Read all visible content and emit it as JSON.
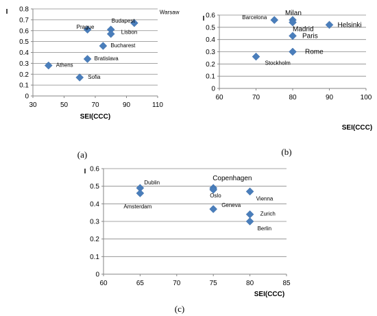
{
  "chart_data": [
    {
      "type": "scatter",
      "caption": "(a)",
      "xlabel": "SEI(CCC)",
      "ylabel": "I",
      "xlim": [
        30,
        110
      ],
      "ylim": [
        0,
        0.8
      ],
      "xticks": [
        "30",
        "50",
        "70",
        "90",
        "110"
      ],
      "yticks": [
        "0",
        "0.1",
        "0.2",
        "0.3",
        "0.4",
        "0.5",
        "0.6",
        "0.7",
        "0.8"
      ],
      "points": [
        {
          "label": "Warsaw",
          "x": 95,
          "y": 0.67
        },
        {
          "label": "Budapest",
          "x": 80,
          "y": 0.61
        },
        {
          "label": "Prague",
          "x": 65,
          "y": 0.61
        },
        {
          "label": "Lisbon",
          "x": 80,
          "y": 0.57
        },
        {
          "label": "Bucharest",
          "x": 75,
          "y": 0.46
        },
        {
          "label": "Bratislava",
          "x": 65,
          "y": 0.34
        },
        {
          "label": "Athens",
          "x": 40,
          "y": 0.28
        },
        {
          "label": "Sofia",
          "x": 60,
          "y": 0.17
        }
      ]
    },
    {
      "type": "scatter",
      "caption": "(b)",
      "xlabel": "SEI(CCC)",
      "ylabel": "I",
      "xlim": [
        60,
        100
      ],
      "ylim": [
        0,
        0.6
      ],
      "xticks": [
        "60",
        "70",
        "80",
        "90",
        "100"
      ],
      "yticks": [
        "0",
        "0.1",
        "0.2",
        "0.3",
        "0.4",
        "0.5",
        "0.6"
      ],
      "points": [
        {
          "label": "Barcelona",
          "x": 75,
          "y": 0.56
        },
        {
          "label": "Milan",
          "x": 80,
          "y": 0.56
        },
        {
          "label": "Madrid",
          "x": 80,
          "y": 0.54
        },
        {
          "label": "Helsinki",
          "x": 90,
          "y": 0.52
        },
        {
          "label": "Paris",
          "x": 80,
          "y": 0.43
        },
        {
          "label": "Rome",
          "x": 80,
          "y": 0.3
        },
        {
          "label": "Stockholm",
          "x": 70,
          "y": 0.26
        }
      ]
    },
    {
      "type": "scatter",
      "caption": "(c)",
      "xlabel": "SEI(CCC)",
      "ylabel": "I",
      "xlim": [
        60,
        85
      ],
      "ylim": [
        0,
        0.6
      ],
      "xticks": [
        "60",
        "65",
        "70",
        "75",
        "80",
        "85"
      ],
      "yticks": [
        "0",
        "0.1",
        "0.2",
        "0.3",
        "0.4",
        "0.5",
        "0.6"
      ],
      "points": [
        {
          "label": "Dublin",
          "x": 65,
          "y": 0.49
        },
        {
          "label": "Amsterdam",
          "x": 65,
          "y": 0.46
        },
        {
          "label": "Copenhagen",
          "x": 75,
          "y": 0.49
        },
        {
          "label": "Oslo",
          "x": 75,
          "y": 0.48
        },
        {
          "label": "Vienna",
          "x": 80,
          "y": 0.47
        },
        {
          "label": "Geneva",
          "x": 75,
          "y": 0.37
        },
        {
          "label": "Zurich",
          "x": 80,
          "y": 0.34
        },
        {
          "label": "Berlin",
          "x": 80,
          "y": 0.3
        }
      ]
    }
  ]
}
